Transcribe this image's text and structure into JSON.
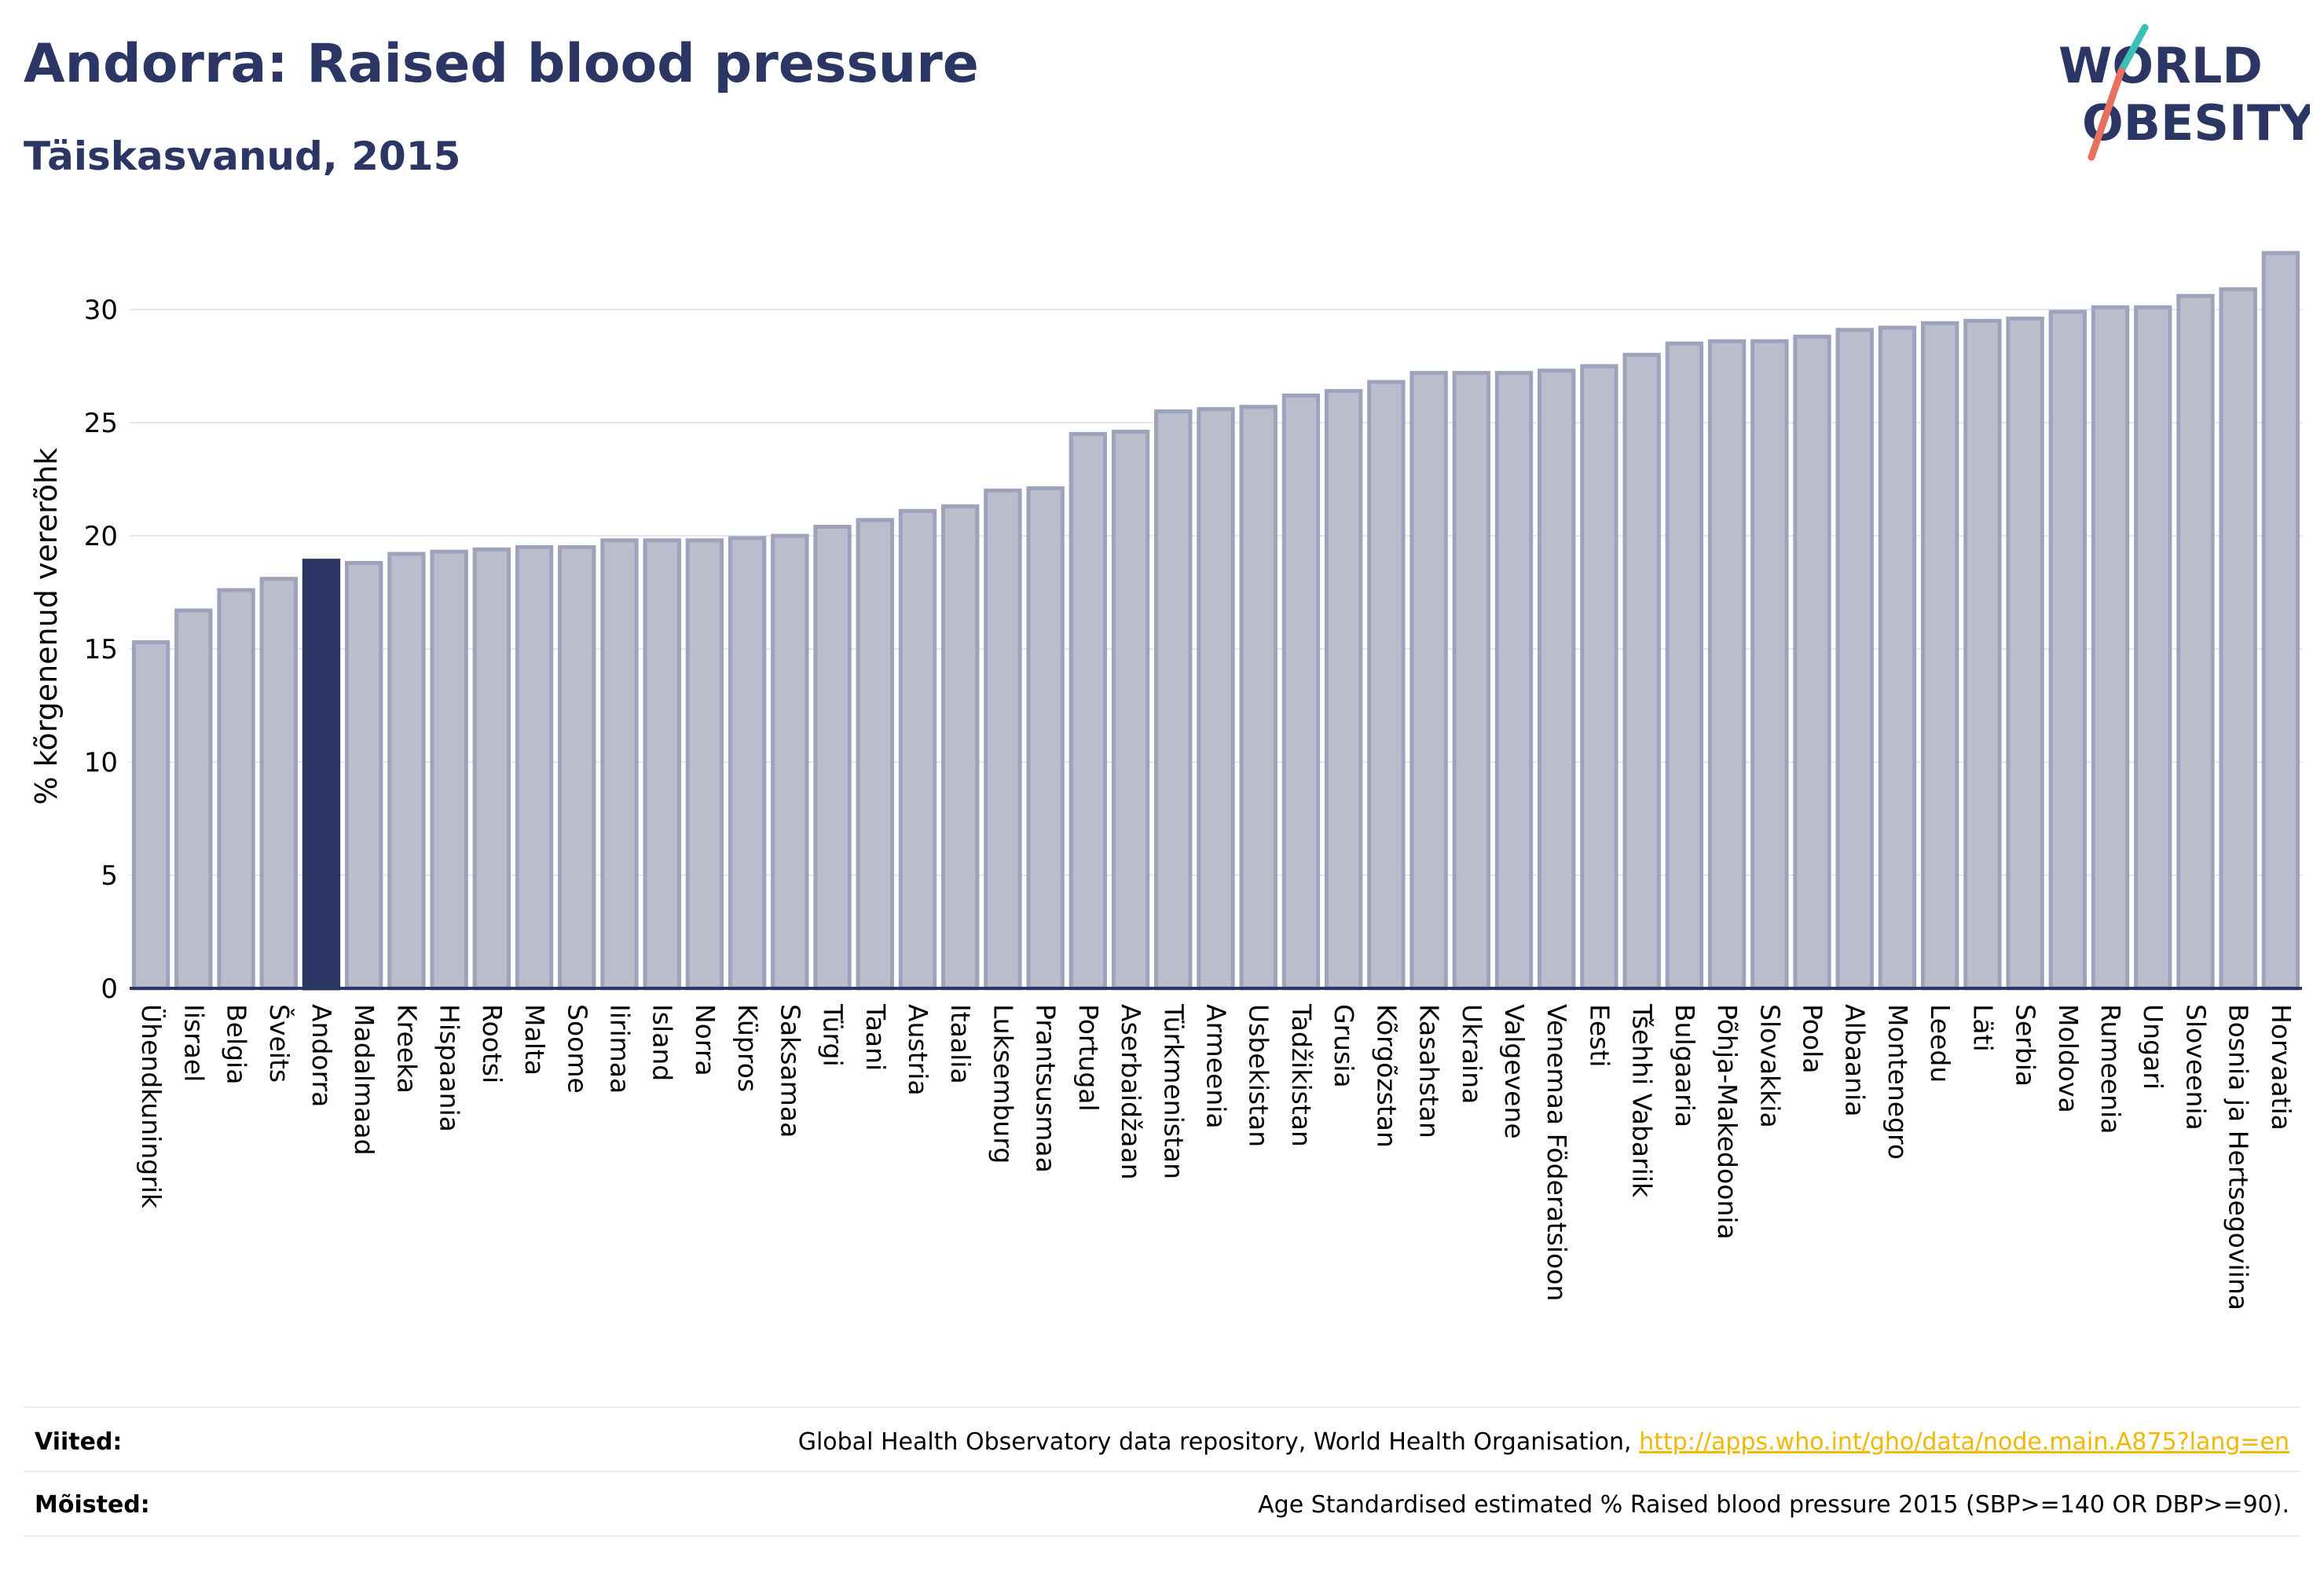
{
  "title": "Andorra: Raised blood pressure",
  "subtitle": "Täiskasvanud, 2015",
  "logo": {
    "line1": "WORLD",
    "line2": "OBESITY",
    "slash_color": "#e8705f",
    "slash_color2": "#3bbfb8"
  },
  "colors": {
    "highlight": "#2b3664",
    "bar": "#b9bdcc",
    "bar_edge": "#9ea3bb",
    "text_dark": "#2b3664",
    "link": "#f2b700"
  },
  "chart_data": {
    "type": "bar",
    "title": "",
    "xlabel": "",
    "ylabel": "% kõrgenenud vererõhk",
    "ylim": [
      0,
      33
    ],
    "yticks": [
      0,
      5,
      10,
      15,
      20,
      25,
      30
    ],
    "highlight": "Andorra",
    "grid": true,
    "categories": [
      "Ühendkuningrik",
      "Iisrael",
      "Belgia",
      "Šveits",
      "Andorra",
      "Madalmaad",
      "Kreeka",
      "Hispaania",
      "Rootsi",
      "Malta",
      "Soome",
      "Iirimaa",
      "Island",
      "Norra",
      "Küpros",
      "Saksamaa",
      "Türgi",
      "Taani",
      "Austria",
      "Itaalia",
      "Luksemburg",
      "Prantsusmaa",
      "Portugal",
      "Aserbaidžaan",
      "Türkmenistan",
      "Armeenia",
      "Usbekistan",
      "Tadžikistan",
      "Grusia",
      "Kõrgõzstan",
      "Kasahstan",
      "Ukraina",
      "Valgevene",
      "Venemaa Föderatsioon",
      "Eesti",
      "Tšehhi Vabariik",
      "Bulgaaria",
      "Põhja-Makedoonia",
      "Slovakkia",
      "Poola",
      "Albaania",
      "Montenegro",
      "Leedu",
      "Läti",
      "Serbia",
      "Moldova",
      "Rumeenia",
      "Ungari",
      "Sloveenia",
      "Bosnia ja Hertsegoviina",
      "Horvaatia"
    ],
    "values": [
      15.3,
      16.7,
      17.6,
      18.1,
      18.9,
      18.8,
      19.2,
      19.3,
      19.4,
      19.5,
      19.5,
      19.8,
      19.8,
      19.8,
      19.9,
      20.0,
      20.4,
      20.7,
      21.1,
      21.3,
      22.0,
      22.1,
      24.5,
      24.6,
      25.5,
      25.6,
      25.7,
      26.2,
      26.4,
      26.8,
      27.2,
      27.2,
      27.2,
      27.3,
      27.5,
      28.0,
      28.5,
      28.6,
      28.6,
      28.8,
      29.1,
      29.2,
      29.4,
      29.5,
      29.6,
      29.9,
      30.1,
      30.1,
      30.6,
      30.9,
      32.5
    ]
  },
  "footer": {
    "viited_label": "Viited:",
    "viited_text": "Global Health Observatory data repository, World Health Organisation,",
    "viited_link": "http://apps.who.int/gho/data/node.main.A875?lang=en",
    "moisted_label": "Mõisted:",
    "moisted_text": "Age Standardised estimated % Raised blood pressure 2015 (SBP>=140 OR DBP>=90)."
  }
}
